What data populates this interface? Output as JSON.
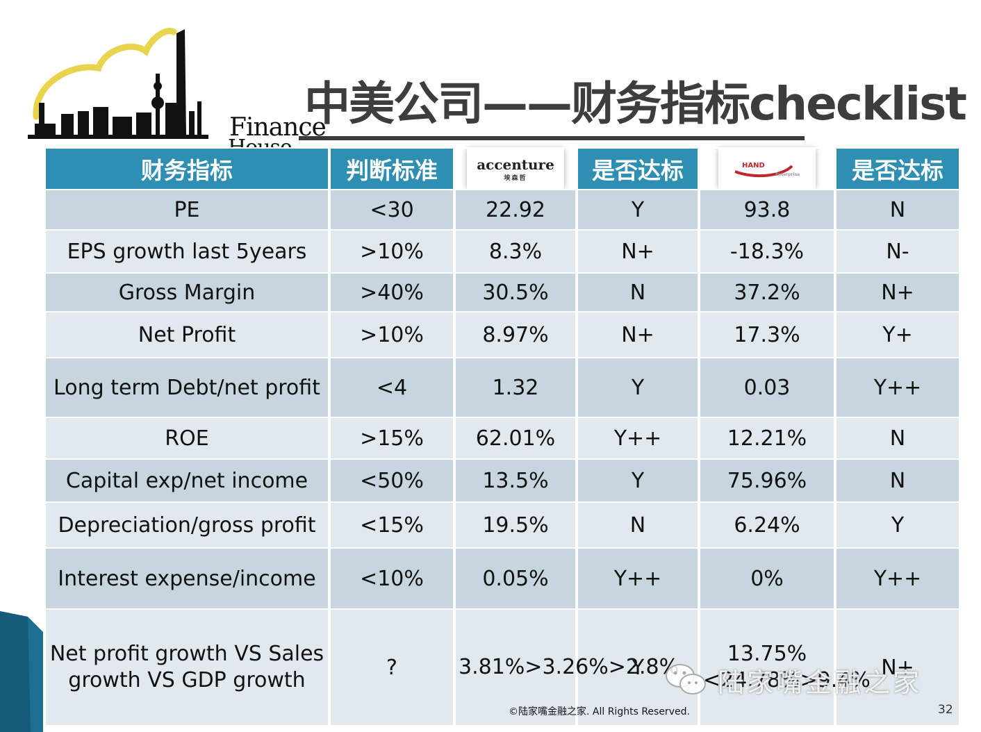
{
  "logo": {
    "brand": "LuJiazui House",
    "finance": "Finance",
    "house": "House"
  },
  "title": "中美公司——财务指标checklist",
  "table": {
    "headers": [
      "财务指标",
      "判断标准",
      "accenture",
      "是否达标",
      "HAND",
      "是否达标"
    ],
    "accenture_logo": {
      "name": "accenture",
      "sub": "埃森哲"
    },
    "rows": [
      [
        "PE",
        "<30",
        "22.92",
        "Y",
        "93.8",
        "N"
      ],
      [
        "EPS growth last 5years",
        ">10%",
        "8.3%",
        "N+",
        "-18.3%",
        "N-"
      ],
      [
        "Gross Margin",
        ">40%",
        "30.5%",
        "N",
        "37.2%",
        "N+"
      ],
      [
        "Net Profit",
        ">10%",
        "8.97%",
        "N+",
        "17.3%",
        "Y+"
      ],
      [
        "Long term Debt/net profit",
        "<4",
        "1.32",
        "Y",
        "0.03",
        "Y++"
      ],
      [
        "ROE",
        ">15%",
        "62.01%",
        "Y++",
        "12.21%",
        "N"
      ],
      [
        "Capital exp/net income",
        "<50%",
        "13.5%",
        "Y",
        "75.96%",
        "N"
      ],
      [
        "Depreciation/gross profit",
        "<15%",
        "19.5%",
        "N",
        "6.24%",
        "Y"
      ],
      [
        "Interest expense/income",
        "<10%",
        "0.05%",
        "Y++",
        "0%",
        "Y++"
      ],
      [
        "Net profit growth VS Sales growth VS GDP growth",
        "?",
        "3.81%>3.26%>2.8%",
        "Y",
        "13.75%<24.78%>9.4%",
        "N+"
      ]
    ]
  },
  "watermark": "陆家嘴金融之家",
  "footer": "©陆家嘴金融之家. All Rights Reserved.",
  "page_number": "32",
  "colors": {
    "header": "#2e8fb3",
    "row_dark": "#c7d5de",
    "row_light": "#e1e9ee",
    "title": "#3d3d3d",
    "logo_cloud": "#e8d44d"
  }
}
